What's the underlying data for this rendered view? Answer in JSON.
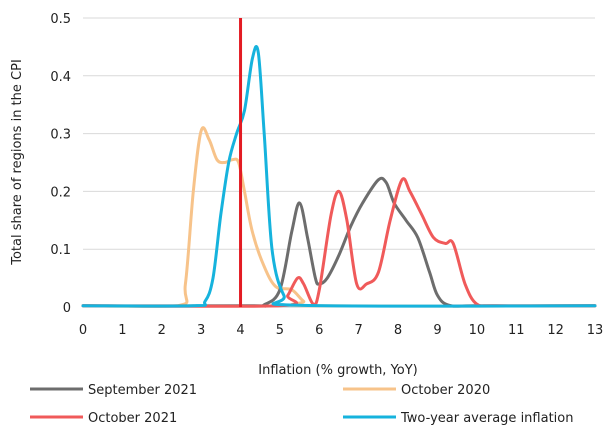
{
  "chart_data": {
    "type": "line",
    "title": "",
    "xlabel": "Inflation (% growth, YoY)",
    "ylabel": "Total share of regions in the CPI",
    "xlim": [
      0,
      13
    ],
    "ylim": [
      0,
      0.5
    ],
    "x_ticks": [
      "0",
      "1",
      "2",
      "3",
      "4",
      "5",
      "6",
      "7",
      "8",
      "9",
      "10",
      "11",
      "12",
      "13"
    ],
    "y_ticks": [
      "0",
      "0.1",
      "0.2",
      "0.3",
      "0.4",
      "0.5"
    ],
    "grid": "horizontal",
    "legend_position": "bottom",
    "reference_line": {
      "x": 4,
      "color": "#e31b23"
    },
    "series": [
      {
        "name": "September 2021",
        "color": "#6d6d6d",
        "points": [
          [
            0,
            0.002
          ],
          [
            4.2,
            0.002
          ],
          [
            4.6,
            0.004
          ],
          [
            5.0,
            0.03
          ],
          [
            5.3,
            0.13
          ],
          [
            5.5,
            0.18
          ],
          [
            5.7,
            0.12
          ],
          [
            5.9,
            0.05
          ],
          [
            6.0,
            0.04
          ],
          [
            6.2,
            0.05
          ],
          [
            6.5,
            0.09
          ],
          [
            6.8,
            0.14
          ],
          [
            7.1,
            0.18
          ],
          [
            7.5,
            0.22
          ],
          [
            7.7,
            0.215
          ],
          [
            7.9,
            0.18
          ],
          [
            8.2,
            0.15
          ],
          [
            8.5,
            0.12
          ],
          [
            8.8,
            0.06
          ],
          [
            9.0,
            0.02
          ],
          [
            9.3,
            0.003
          ],
          [
            10,
            0.002
          ],
          [
            13,
            0.002
          ]
        ]
      },
      {
        "name": "October 2020",
        "color": "#f7c38a",
        "points": [
          [
            0,
            0.002
          ],
          [
            2.4,
            0.002
          ],
          [
            2.6,
            0.04
          ],
          [
            2.8,
            0.2
          ],
          [
            3.0,
            0.305
          ],
          [
            3.2,
            0.29
          ],
          [
            3.4,
            0.255
          ],
          [
            3.6,
            0.25
          ],
          [
            3.8,
            0.255
          ],
          [
            3.95,
            0.25
          ],
          [
            4.1,
            0.2
          ],
          [
            4.3,
            0.13
          ],
          [
            4.6,
            0.07
          ],
          [
            4.9,
            0.035
          ],
          [
            5.3,
            0.03
          ],
          [
            5.6,
            0.01
          ],
          [
            5.9,
            0.002
          ],
          [
            13,
            0.002
          ]
        ]
      },
      {
        "name": "October 2021",
        "color": "#f05a5a",
        "points": [
          [
            0,
            0.002
          ],
          [
            5.0,
            0.002
          ],
          [
            5.2,
            0.02
          ],
          [
            5.45,
            0.05
          ],
          [
            5.6,
            0.04
          ],
          [
            5.85,
            0.005
          ],
          [
            6.0,
            0.03
          ],
          [
            6.3,
            0.16
          ],
          [
            6.5,
            0.2
          ],
          [
            6.7,
            0.15
          ],
          [
            6.95,
            0.04
          ],
          [
            7.2,
            0.04
          ],
          [
            7.5,
            0.06
          ],
          [
            7.8,
            0.15
          ],
          [
            8.1,
            0.22
          ],
          [
            8.3,
            0.2
          ],
          [
            8.6,
            0.16
          ],
          [
            8.9,
            0.12
          ],
          [
            9.2,
            0.11
          ],
          [
            9.4,
            0.11
          ],
          [
            9.7,
            0.04
          ],
          [
            10.0,
            0.005
          ],
          [
            10.5,
            0.002
          ],
          [
            13,
            0.002
          ]
        ]
      },
      {
        "name": "Two-year average inflation",
        "color": "#16b3dd",
        "points": [
          [
            0,
            0.002
          ],
          [
            2.8,
            0.002
          ],
          [
            3.1,
            0.01
          ],
          [
            3.3,
            0.05
          ],
          [
            3.5,
            0.16
          ],
          [
            3.7,
            0.25
          ],
          [
            3.9,
            0.3
          ],
          [
            4.1,
            0.34
          ],
          [
            4.3,
            0.43
          ],
          [
            4.45,
            0.44
          ],
          [
            4.6,
            0.3
          ],
          [
            4.8,
            0.1
          ],
          [
            5.1,
            0.02
          ],
          [
            5.5,
            0.003
          ],
          [
            13,
            0.002
          ]
        ]
      }
    ]
  }
}
